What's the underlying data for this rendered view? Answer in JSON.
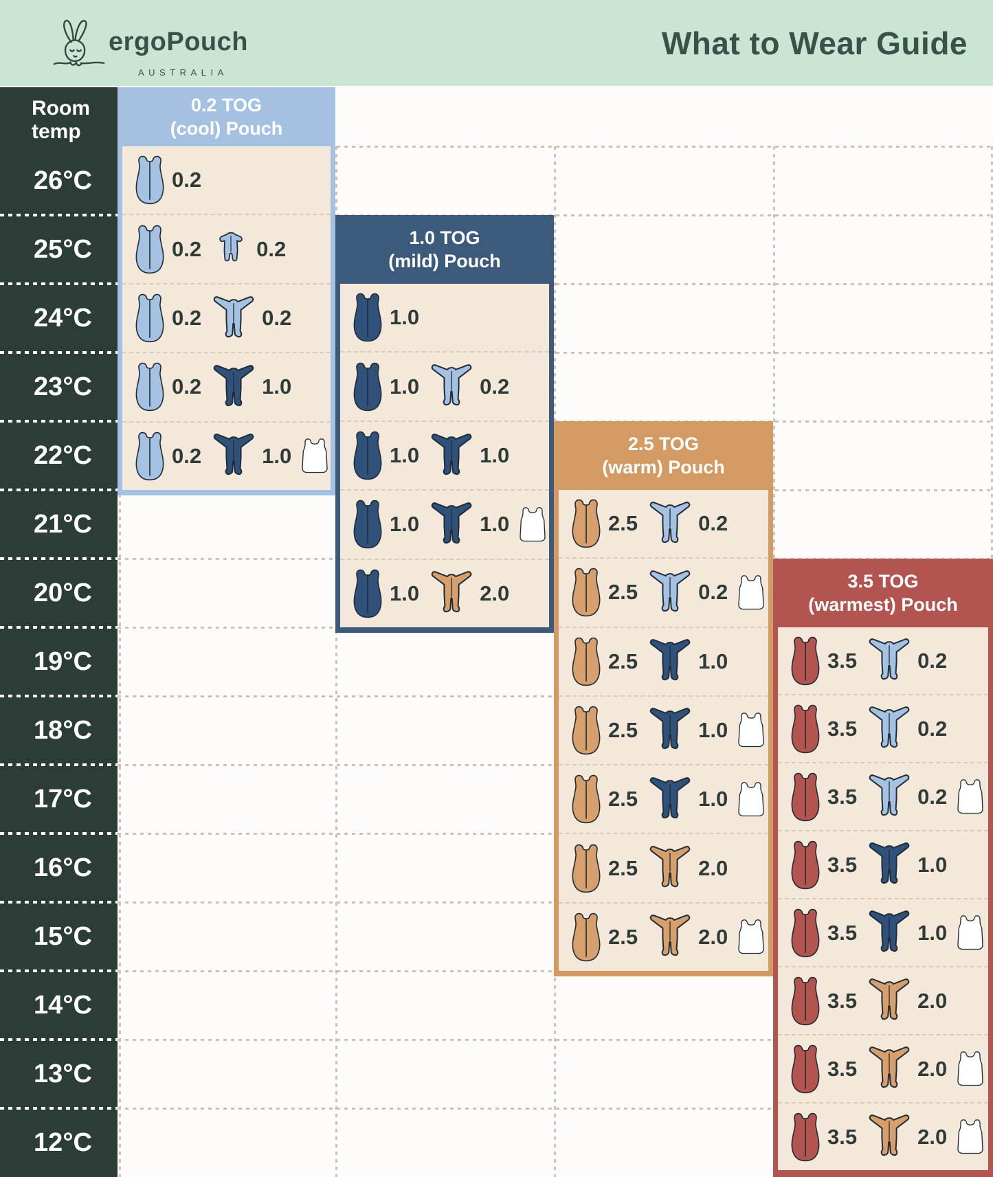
{
  "meta": {
    "brand": "ergoPouch",
    "brand_sub": "AUSTRALIA",
    "title": "What to Wear Guide"
  },
  "temp_column": {
    "header": "Room temp",
    "temps": [
      "26°C",
      "25°C",
      "24°C",
      "23°C",
      "22°C",
      "21°C",
      "20°C",
      "19°C",
      "18°C",
      "17°C",
      "16°C",
      "15°C",
      "14°C",
      "13°C",
      "12°C"
    ]
  },
  "colors": {
    "mint_header": "#c9e6d4",
    "heading_ink": "#3a5149",
    "temp_column_bg": "#2c3d37",
    "panel_body": "#f4e8db",
    "value_ink": "#2f3b37",
    "icon_outline": "#1e2c35",
    "light_blue": "#a6c2e3",
    "navy": "#30517a",
    "tan": "#d79f6b",
    "red": "#b4544e",
    "white": "#ffffff",
    "dotted_line": "#d2c1b0"
  },
  "icon_legend": {
    "pouch": "sleeping-bag-pouch-icon",
    "suit": "long-sleeve-sleep-suit-icon",
    "romper": "short-sleeve-romper-icon",
    "singlet": "white-singlet-icon"
  },
  "panels": [
    {
      "id": "tog-0-2",
      "title_line1": "0.2 TOG",
      "title_line2": "(cool) Pouch",
      "accent": "#a5c1e1",
      "rows": [
        {
          "temp": "26°C",
          "items": [
            {
              "type": "pouch",
              "color": "light_blue",
              "tog": "0.2"
            }
          ]
        },
        {
          "temp": "25°C",
          "items": [
            {
              "type": "pouch",
              "color": "light_blue",
              "tog": "0.2"
            },
            {
              "type": "romper",
              "color": "light_blue",
              "tog": "0.2"
            }
          ]
        },
        {
          "temp": "24°C",
          "items": [
            {
              "type": "pouch",
              "color": "light_blue",
              "tog": "0.2"
            },
            {
              "type": "suit",
              "color": "light_blue",
              "tog": "0.2"
            }
          ]
        },
        {
          "temp": "23°C",
          "items": [
            {
              "type": "pouch",
              "color": "light_blue",
              "tog": "0.2"
            },
            {
              "type": "suit",
              "color": "navy",
              "tog": "1.0"
            }
          ]
        },
        {
          "temp": "22°C",
          "items": [
            {
              "type": "pouch",
              "color": "light_blue",
              "tog": "0.2"
            },
            {
              "type": "suit",
              "color": "navy",
              "tog": "1.0"
            },
            {
              "type": "singlet",
              "color": "white",
              "tog": ""
            }
          ]
        }
      ]
    },
    {
      "id": "tog-1-0",
      "title_line1": "1.0 TOG",
      "title_line2": "(mild) Pouch",
      "accent": "#3c5b7c",
      "rows": [
        {
          "temp": "24°C",
          "items": [
            {
              "type": "pouch",
              "color": "navy",
              "tog": "1.0"
            }
          ]
        },
        {
          "temp": "23°C",
          "items": [
            {
              "type": "pouch",
              "color": "navy",
              "tog": "1.0"
            },
            {
              "type": "suit",
              "color": "light_blue",
              "tog": "0.2"
            }
          ]
        },
        {
          "temp": "22°C",
          "items": [
            {
              "type": "pouch",
              "color": "navy",
              "tog": "1.0"
            },
            {
              "type": "suit",
              "color": "navy",
              "tog": "1.0"
            }
          ]
        },
        {
          "temp": "21°C",
          "items": [
            {
              "type": "pouch",
              "color": "navy",
              "tog": "1.0"
            },
            {
              "type": "suit",
              "color": "navy",
              "tog": "1.0"
            },
            {
              "type": "singlet",
              "color": "white",
              "tog": ""
            }
          ]
        },
        {
          "temp": "20°C",
          "items": [
            {
              "type": "pouch",
              "color": "navy",
              "tog": "1.0"
            },
            {
              "type": "suit",
              "color": "tan",
              "tog": "2.0"
            }
          ]
        }
      ]
    },
    {
      "id": "tog-2-5",
      "title_line1": "2.5 TOG",
      "title_line2": "(warm) Pouch",
      "accent": "#d49a64",
      "rows": [
        {
          "temp": "21°C",
          "items": [
            {
              "type": "pouch",
              "color": "tan",
              "tog": "2.5"
            },
            {
              "type": "suit",
              "color": "light_blue",
              "tog": "0.2"
            }
          ]
        },
        {
          "temp": "20°C",
          "items": [
            {
              "type": "pouch",
              "color": "tan",
              "tog": "2.5"
            },
            {
              "type": "suit",
              "color": "light_blue",
              "tog": "0.2"
            },
            {
              "type": "singlet",
              "color": "white",
              "tog": ""
            }
          ]
        },
        {
          "temp": "19°C",
          "items": [
            {
              "type": "pouch",
              "color": "tan",
              "tog": "2.5"
            },
            {
              "type": "suit",
              "color": "navy",
              "tog": "1.0"
            }
          ]
        },
        {
          "temp": "18°C",
          "items": [
            {
              "type": "pouch",
              "color": "tan",
              "tog": "2.5"
            },
            {
              "type": "suit",
              "color": "navy",
              "tog": "1.0"
            },
            {
              "type": "singlet",
              "color": "white",
              "tog": ""
            }
          ]
        },
        {
          "temp": "17°C",
          "items": [
            {
              "type": "pouch",
              "color": "tan",
              "tog": "2.5"
            },
            {
              "type": "suit",
              "color": "navy",
              "tog": "1.0"
            },
            {
              "type": "singlet",
              "color": "white",
              "tog": ""
            }
          ]
        },
        {
          "temp": "16°C",
          "items": [
            {
              "type": "pouch",
              "color": "tan",
              "tog": "2.5"
            },
            {
              "type": "suit",
              "color": "tan",
              "tog": "2.0"
            }
          ]
        },
        {
          "temp": "15°C",
          "items": [
            {
              "type": "pouch",
              "color": "tan",
              "tog": "2.5"
            },
            {
              "type": "suit",
              "color": "tan",
              "tog": "2.0"
            },
            {
              "type": "singlet",
              "color": "white",
              "tog": ""
            }
          ]
        }
      ]
    },
    {
      "id": "tog-3-5",
      "title_line1": "3.5 TOG",
      "title_line2": "(warmest) Pouch",
      "accent": "#b2544f",
      "rows": [
        {
          "temp": "19°C",
          "items": [
            {
              "type": "pouch",
              "color": "red",
              "tog": "3.5"
            },
            {
              "type": "suit",
              "color": "light_blue",
              "tog": "0.2"
            }
          ]
        },
        {
          "temp": "18°C",
          "items": [
            {
              "type": "pouch",
              "color": "red",
              "tog": "3.5"
            },
            {
              "type": "suit",
              "color": "light_blue",
              "tog": "0.2"
            }
          ]
        },
        {
          "temp": "17°C",
          "items": [
            {
              "type": "pouch",
              "color": "red",
              "tog": "3.5"
            },
            {
              "type": "suit",
              "color": "light_blue",
              "tog": "0.2"
            },
            {
              "type": "singlet",
              "color": "white",
              "tog": ""
            }
          ]
        },
        {
          "temp": "16°C",
          "items": [
            {
              "type": "pouch",
              "color": "red",
              "tog": "3.5"
            },
            {
              "type": "suit",
              "color": "navy",
              "tog": "1.0"
            }
          ]
        },
        {
          "temp": "15°C",
          "items": [
            {
              "type": "pouch",
              "color": "red",
              "tog": "3.5"
            },
            {
              "type": "suit",
              "color": "navy",
              "tog": "1.0"
            },
            {
              "type": "singlet",
              "color": "white",
              "tog": ""
            }
          ]
        },
        {
          "temp": "14°C",
          "items": [
            {
              "type": "pouch",
              "color": "red",
              "tog": "3.5"
            },
            {
              "type": "suit",
              "color": "tan",
              "tog": "2.0"
            }
          ]
        },
        {
          "temp": "13°C",
          "items": [
            {
              "type": "pouch",
              "color": "red",
              "tog": "3.5"
            },
            {
              "type": "suit",
              "color": "tan",
              "tog": "2.0"
            },
            {
              "type": "singlet",
              "color": "white",
              "tog": ""
            }
          ]
        },
        {
          "temp": "12°C",
          "items": [
            {
              "type": "pouch",
              "color": "red",
              "tog": "3.5"
            },
            {
              "type": "suit",
              "color": "tan",
              "tog": "2.0"
            },
            {
              "type": "singlet",
              "color": "white",
              "tog": ""
            }
          ]
        }
      ]
    }
  ]
}
